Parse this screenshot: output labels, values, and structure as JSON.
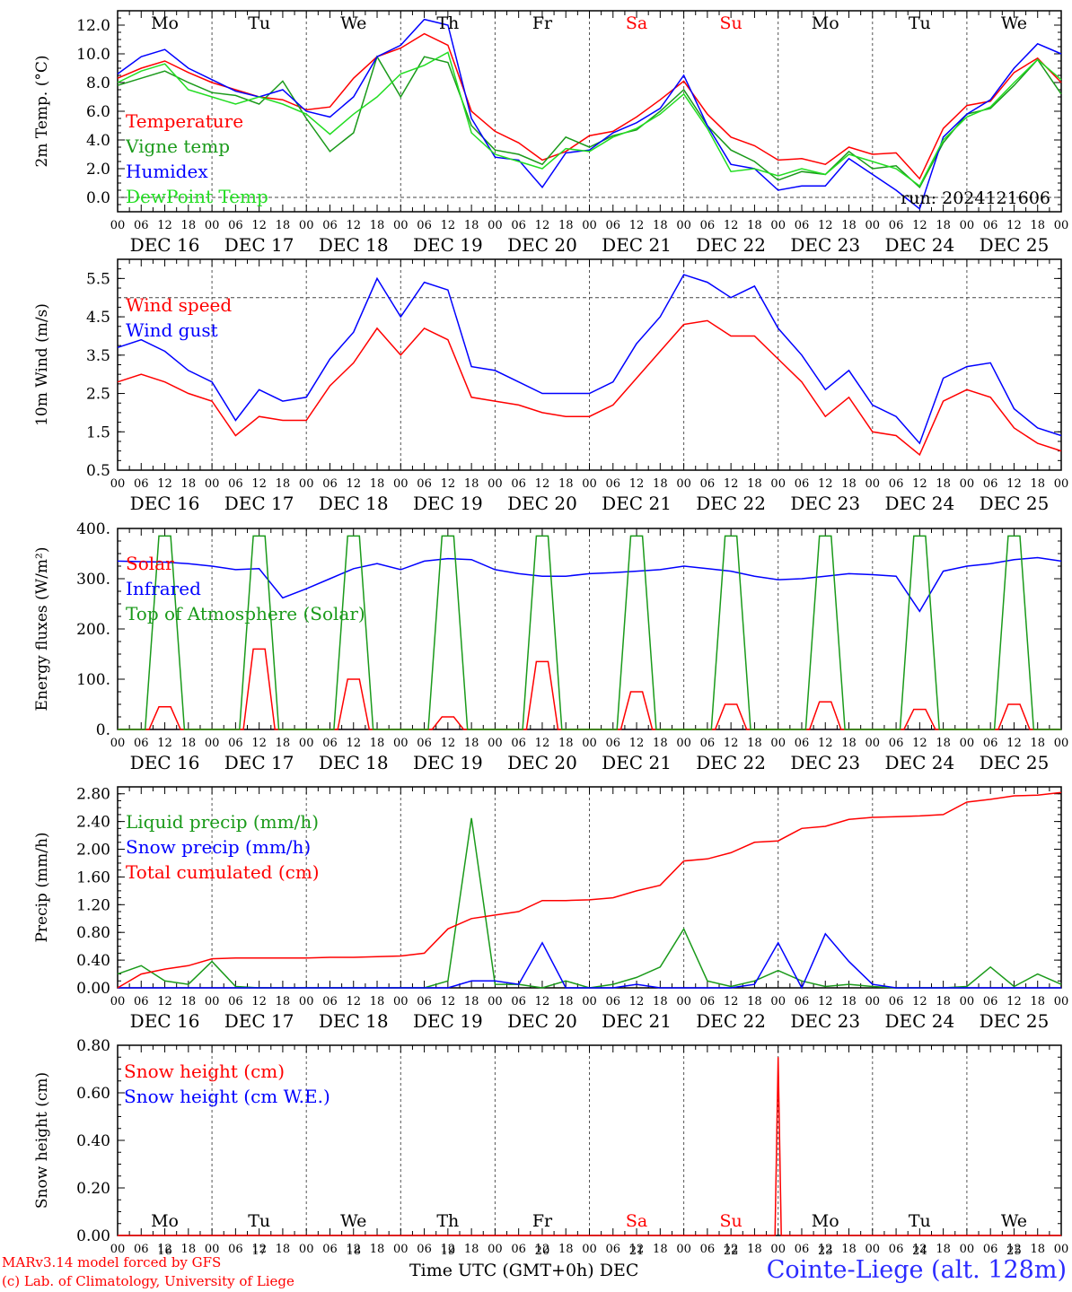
{
  "colors": {
    "red": "#ff0000",
    "green": "#1a9a1a",
    "blue": "#0000ff",
    "lightgreen": "#22dd22",
    "weekend": "#ff0000",
    "text": "#000000"
  },
  "days": {
    "abbr": [
      "Mo",
      "Tu",
      "We",
      "Th",
      "Fr",
      "Sa",
      "Su",
      "Mo",
      "Tu",
      "We"
    ],
    "weekend": [
      false,
      false,
      false,
      false,
      false,
      true,
      true,
      false,
      false,
      false
    ],
    "dates": [
      "DEC 16",
      "DEC 17",
      "DEC 18",
      "DEC 19",
      "DEC 20",
      "DEC 21",
      "DEC 22",
      "DEC 23",
      "DEC 24",
      "DEC 25"
    ],
    "nums": [
      "16",
      "17",
      "18",
      "19",
      "20",
      "21",
      "22",
      "23",
      "24",
      "25"
    ],
    "hour_ticks": [
      "00",
      "06",
      "12",
      "18"
    ],
    "final_tick": "00"
  },
  "run_label": "run: 2024121606",
  "footer": {
    "model": "MARv3.14 model forced by GFS",
    "lab": "(c) Lab. of Climatology, University of Liege",
    "time_axis": "Time UTC (GMT+0h) DEC",
    "station": "Cointe-Liege (alt. 128m)"
  },
  "chart_data": [
    {
      "type": "line",
      "ylabel": "2m Temp. (°C)",
      "ylim": [
        -1,
        13
      ],
      "yticks": [
        "0.0",
        "2.0",
        "4.0",
        "6.0",
        "8.0",
        "10.0",
        "12.0"
      ],
      "yticks_values": [
        0,
        2,
        4,
        6,
        8,
        10,
        12
      ],
      "ref_line": 0,
      "show_day_abbr": true,
      "x_hours_from_dec16_00": [
        0,
        6,
        12,
        18,
        24,
        30,
        36,
        42,
        48,
        54,
        60,
        66,
        72,
        78,
        84,
        90,
        96,
        102,
        108,
        114,
        120,
        126,
        132,
        138,
        144,
        150,
        156,
        162,
        168,
        174,
        180,
        186,
        192,
        198,
        204,
        210,
        216,
        222,
        228,
        234,
        240
      ],
      "series": [
        {
          "name": "Temperature",
          "color": "red",
          "values": [
            8.3,
            9.0,
            9.5,
            8.7,
            8.0,
            7.5,
            7.0,
            6.8,
            6.1,
            6.3,
            8.3,
            9.8,
            10.4,
            11.4,
            10.6,
            6.0,
            4.6,
            3.8,
            2.6,
            3.2,
            4.3,
            4.6,
            5.6,
            6.8,
            8.1,
            5.8,
            4.2,
            3.6,
            2.6,
            2.7,
            2.3,
            3.5,
            3.0,
            3.1,
            1.3,
            4.8,
            6.4,
            6.7,
            8.7,
            9.7,
            8.0
          ]
        },
        {
          "name": "Vigne temp",
          "color": "green",
          "values": [
            7.8,
            8.3,
            8.8,
            8.0,
            7.3,
            7.1,
            6.5,
            8.1,
            5.5,
            3.2,
            4.5,
            9.8,
            7.0,
            9.8,
            9.4,
            5.0,
            3.3,
            3.0,
            2.3,
            4.2,
            3.5,
            4.3,
            4.7,
            6.0,
            7.5,
            5.0,
            3.3,
            2.5,
            1.2,
            1.8,
            1.6,
            3.2,
            2.0,
            2.2,
            0.7,
            3.8,
            5.8,
            6.2,
            7.8,
            9.6,
            7.2
          ]
        },
        {
          "name": "Humidex",
          "color": "blue",
          "values": [
            8.6,
            9.8,
            10.3,
            9.0,
            8.2,
            7.4,
            7.0,
            7.5,
            6.0,
            5.6,
            7.0,
            9.8,
            10.6,
            12.4,
            12.0,
            5.5,
            2.8,
            2.6,
            0.7,
            3.1,
            3.3,
            4.5,
            5.2,
            6.2,
            8.5,
            5.0,
            2.3,
            2.0,
            0.5,
            0.8,
            0.8,
            2.7,
            1.6,
            0.5,
            -0.8,
            4.2,
            5.8,
            6.8,
            9.0,
            10.7,
            10.0
          ]
        },
        {
          "name": "DewPoint Temp",
          "color": "lightgreen",
          "values": [
            8.0,
            8.8,
            9.3,
            7.5,
            7.0,
            6.5,
            7.0,
            6.5,
            5.8,
            4.4,
            5.8,
            7.0,
            8.6,
            9.2,
            10.1,
            4.5,
            3.0,
            2.5,
            2.0,
            3.4,
            3.2,
            4.2,
            4.8,
            5.8,
            7.2,
            4.8,
            1.8,
            2.0,
            1.5,
            2.0,
            1.6,
            3.0,
            2.5,
            2.0,
            0.8,
            4.0,
            5.6,
            6.3,
            8.0,
            9.6,
            8.2
          ]
        }
      ]
    },
    {
      "type": "line",
      "ylabel": "10m Wind (m/s)",
      "ylim": [
        0.5,
        6.0
      ],
      "yticks": [
        "0.5",
        "1.5",
        "2.5",
        "3.5",
        "4.5",
        "5.5"
      ],
      "yticks_values": [
        0.5,
        1.5,
        2.5,
        3.5,
        4.5,
        5.5
      ],
      "ref_line": 5.0,
      "x_hours_from_dec16_00": [
        0,
        6,
        12,
        18,
        24,
        30,
        36,
        42,
        48,
        54,
        60,
        66,
        72,
        78,
        84,
        90,
        96,
        102,
        108,
        114,
        120,
        126,
        132,
        138,
        144,
        150,
        156,
        162,
        168,
        174,
        180,
        186,
        192,
        198,
        204,
        210,
        216,
        222,
        228,
        234,
        240
      ],
      "series": [
        {
          "name": "Wind speed",
          "color": "red",
          "values": [
            2.8,
            3.0,
            2.8,
            2.5,
            2.3,
            1.4,
            1.9,
            1.8,
            1.8,
            2.7,
            3.3,
            4.2,
            3.5,
            4.2,
            3.9,
            2.4,
            2.3,
            2.2,
            2.0,
            1.9,
            1.9,
            2.2,
            2.9,
            3.6,
            4.3,
            4.4,
            4.0,
            4.0,
            3.4,
            2.8,
            1.9,
            2.4,
            1.5,
            1.4,
            0.9,
            2.3,
            2.6,
            2.4,
            1.6,
            1.2,
            1.0
          ]
        },
        {
          "name": "Wind gust",
          "color": "blue",
          "values": [
            3.7,
            3.9,
            3.6,
            3.1,
            2.8,
            1.8,
            2.6,
            2.3,
            2.4,
            3.4,
            4.1,
            5.5,
            4.5,
            5.4,
            5.2,
            3.2,
            3.1,
            2.8,
            2.5,
            2.5,
            2.5,
            2.8,
            3.8,
            4.5,
            5.6,
            5.4,
            5.0,
            5.3,
            4.2,
            3.5,
            2.6,
            3.1,
            2.2,
            1.9,
            1.2,
            2.9,
            3.2,
            3.3,
            2.1,
            1.6,
            1.4
          ]
        }
      ]
    },
    {
      "type": "line",
      "ylabel": "Energy fluxes (W/m²)",
      "ylim": [
        0,
        400
      ],
      "yticks": [
        "0.",
        "100.",
        "200.",
        "300.",
        "400."
      ],
      "yticks_values": [
        0,
        100,
        200,
        300,
        400
      ],
      "peak_hours_from_dec16_00": [
        12,
        36,
        60,
        84,
        108,
        132,
        156,
        180,
        204,
        228
      ],
      "series": [
        {
          "name": "Solar",
          "color": "red",
          "peaks": [
            45,
            160,
            100,
            25,
            135,
            75,
            50,
            55,
            40,
            50
          ]
        },
        {
          "name": "Infrared",
          "color": "blue",
          "x_hours_from_dec16_00": [
            0,
            6,
            12,
            18,
            24,
            30,
            36,
            42,
            48,
            54,
            60,
            66,
            72,
            78,
            84,
            90,
            96,
            102,
            108,
            114,
            120,
            126,
            132,
            138,
            144,
            150,
            156,
            162,
            168,
            174,
            180,
            186,
            192,
            198,
            204,
            210,
            216,
            222,
            228,
            234,
            240
          ],
          "values": [
            335,
            334,
            333,
            330,
            325,
            318,
            320,
            262,
            280,
            300,
            320,
            330,
            318,
            335,
            340,
            338,
            318,
            310,
            305,
            305,
            310,
            312,
            315,
            318,
            325,
            320,
            315,
            305,
            298,
            300,
            305,
            310,
            308,
            305,
            235,
            315,
            325,
            330,
            338,
            342,
            335
          ]
        },
        {
          "name": "Top of Atmosphere (Solar)",
          "color": "green",
          "peaks": [
            385,
            385,
            385,
            385,
            385,
            385,
            385,
            385,
            385,
            385
          ]
        }
      ]
    },
    {
      "type": "line",
      "ylabel": "Precip (mm/h)",
      "ylim": [
        0,
        2.9
      ],
      "yticks": [
        "0.00",
        "0.40",
        "0.80",
        "1.20",
        "1.60",
        "2.00",
        "2.40",
        "2.80"
      ],
      "yticks_values": [
        0,
        0.4,
        0.8,
        1.2,
        1.6,
        2.0,
        2.4,
        2.8
      ],
      "x_hours_from_dec16_00": [
        0,
        6,
        12,
        18,
        24,
        30,
        36,
        42,
        48,
        54,
        60,
        66,
        72,
        78,
        84,
        90,
        96,
        102,
        108,
        114,
        120,
        126,
        132,
        138,
        144,
        150,
        156,
        162,
        168,
        174,
        180,
        186,
        192,
        198,
        204,
        210,
        216,
        222,
        228,
        234,
        240
      ],
      "series": [
        {
          "name": "Liquid precip (mm/h)",
          "color": "green",
          "values": [
            0.2,
            0.32,
            0.1,
            0.05,
            0.38,
            0.02,
            0,
            0,
            0,
            0,
            0,
            0,
            0,
            0,
            0.1,
            2.45,
            0.05,
            0.05,
            0,
            0.1,
            0,
            0.05,
            0.15,
            0.3,
            0.85,
            0.1,
            0.02,
            0.1,
            0.25,
            0.1,
            0.02,
            0.05,
            0.02,
            0,
            0,
            0,
            0.02,
            0.3,
            0.02,
            0.2,
            0.05
          ]
        },
        {
          "name": "Snow precip (mm/h)",
          "color": "blue",
          "values": [
            0,
            0,
            0,
            0,
            0,
            0,
            0,
            0,
            0,
            0,
            0,
            0,
            0,
            0,
            0,
            0.1,
            0.1,
            0.05,
            0.65,
            0,
            0,
            0,
            0.05,
            0,
            0,
            0,
            0,
            0.05,
            0.65,
            0,
            0.78,
            0.38,
            0.05,
            0,
            0,
            0,
            0,
            0,
            0,
            0,
            0
          ]
        },
        {
          "name": "Total cumulated (cm)",
          "color": "red",
          "values": [
            0,
            0.2,
            0.27,
            0.32,
            0.42,
            0.43,
            0.43,
            0.43,
            0.43,
            0.44,
            0.44,
            0.45,
            0.46,
            0.5,
            0.85,
            1.0,
            1.05,
            1.1,
            1.26,
            1.26,
            1.27,
            1.3,
            1.4,
            1.48,
            1.83,
            1.86,
            1.95,
            2.1,
            2.12,
            2.3,
            2.33,
            2.43,
            2.46,
            2.47,
            2.48,
            2.5,
            2.68,
            2.72,
            2.77,
            2.78,
            2.82
          ]
        }
      ]
    },
    {
      "type": "line",
      "ylabel": "Snow height (cm)",
      "ylim": [
        0,
        0.8
      ],
      "yticks": [
        "0.00",
        "0.20",
        "0.40",
        "0.60",
        "0.80"
      ],
      "yticks_values": [
        0,
        0.2,
        0.4,
        0.6,
        0.8
      ],
      "show_day_abbr_bottom": true,
      "series": [
        {
          "name": "Snow height (cm)",
          "color": "red",
          "spike_hour_from_dec16_00": 168,
          "spike_value": 0.75
        },
        {
          "name": "Snow height (cm W.E.)",
          "color": "blue",
          "values": []
        }
      ]
    }
  ]
}
